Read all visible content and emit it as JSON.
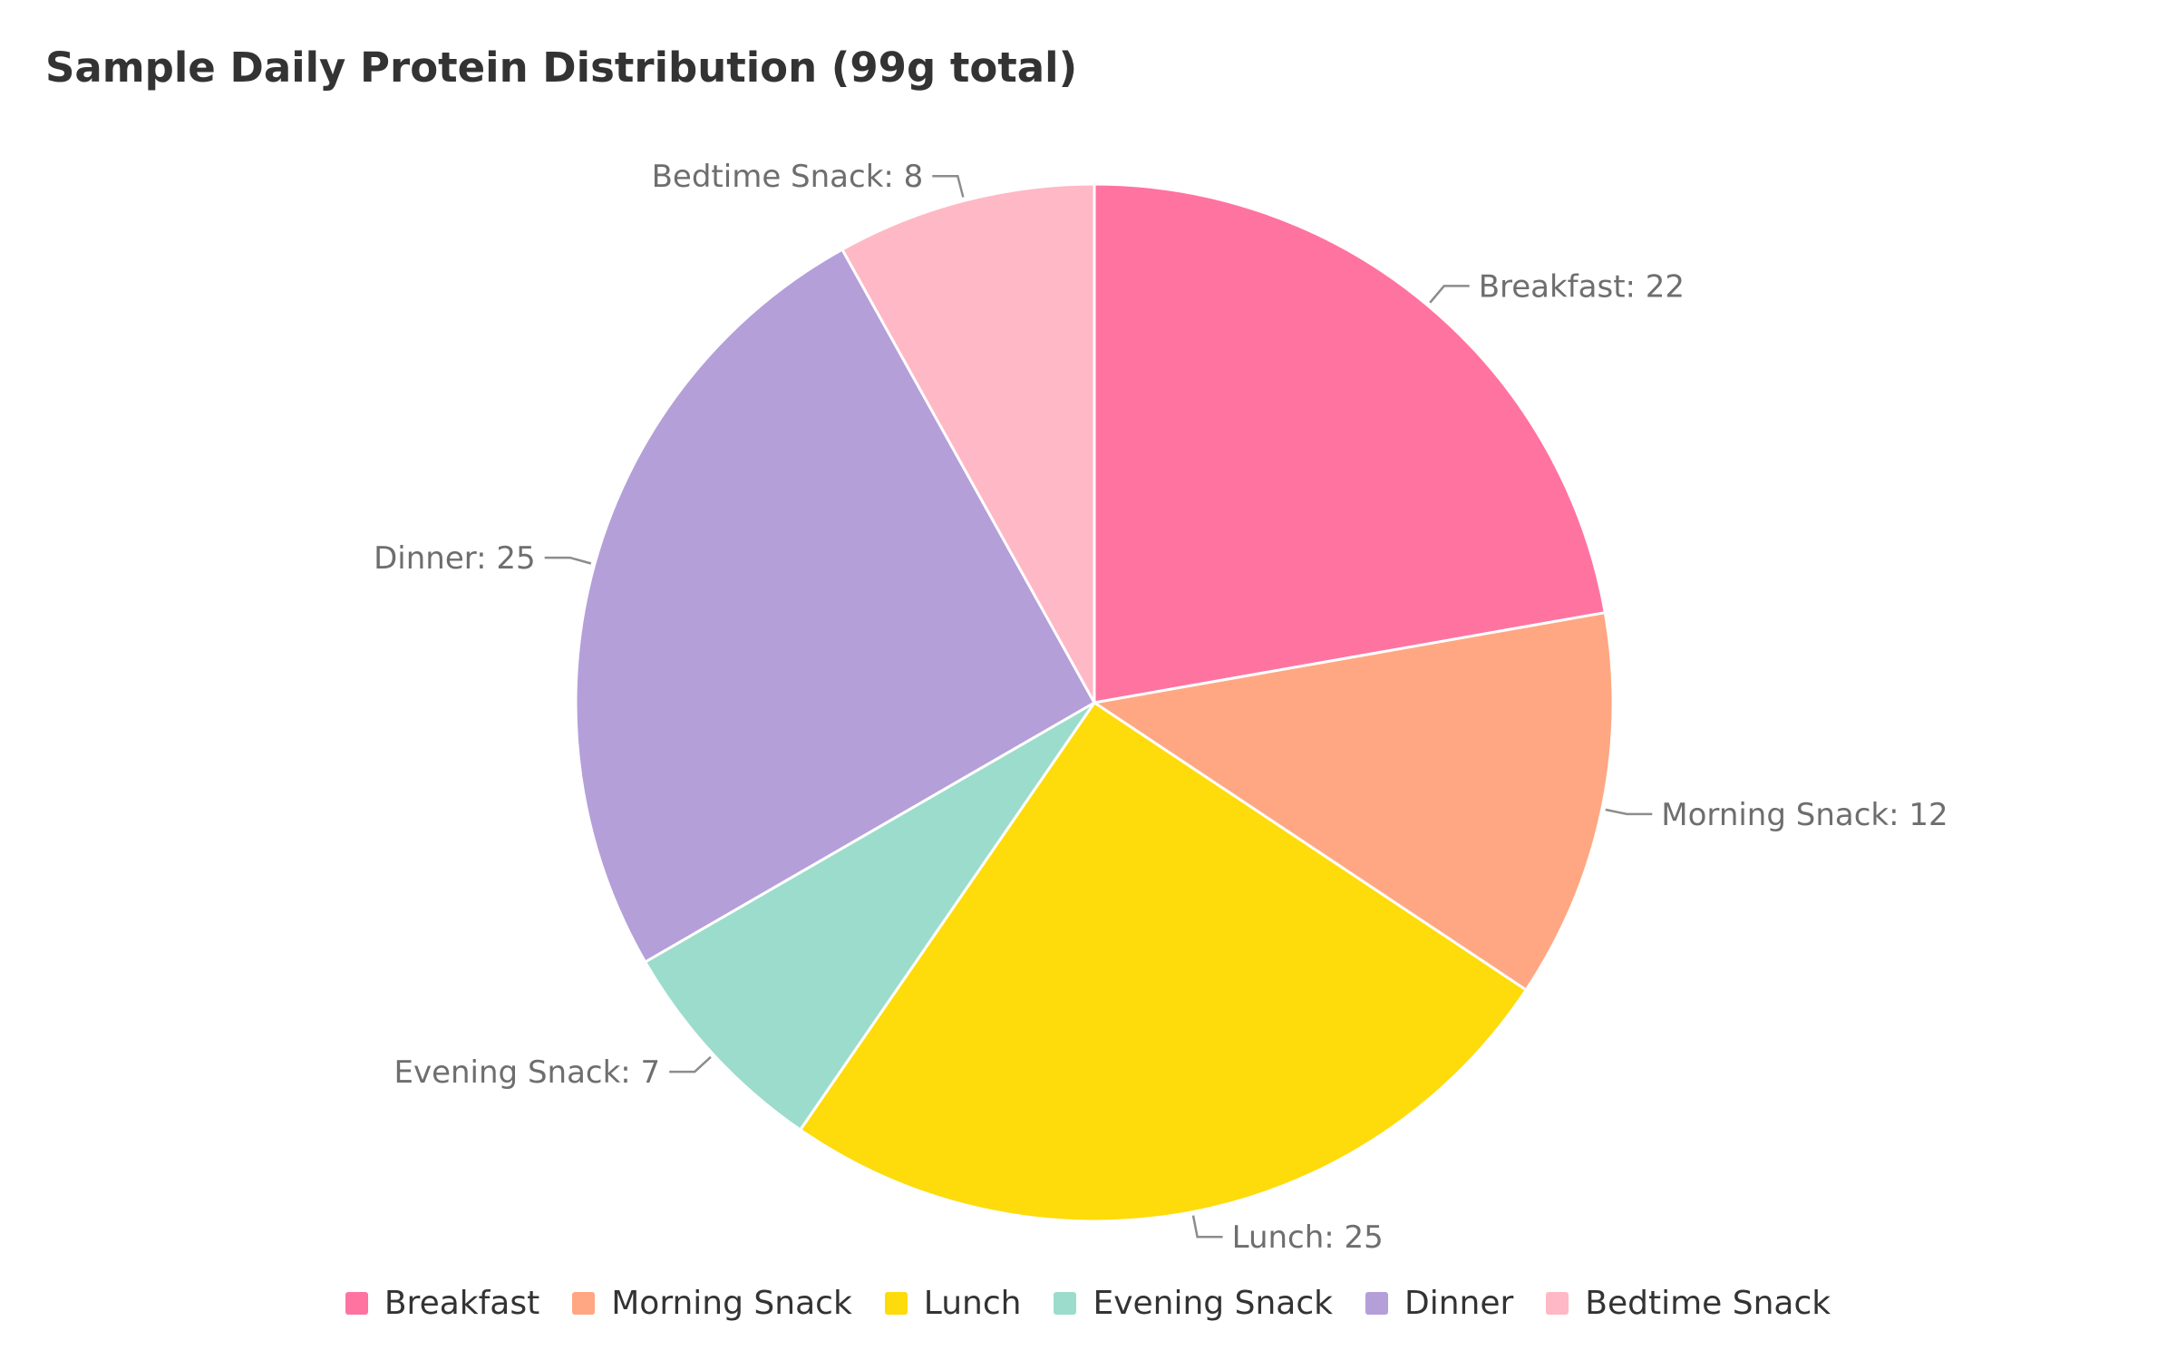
{
  "chart_data": {
    "type": "pie",
    "title": "Sample Daily Protein Distribution (99g total)",
    "categories": [
      "Breakfast",
      "Morning Snack",
      "Lunch",
      "Evening Snack",
      "Dinner",
      "Bedtime Snack"
    ],
    "values": [
      22,
      12,
      25,
      7,
      25,
      8
    ],
    "slice_labels": [
      "Breakfast: 22",
      "Morning Snack: 12",
      "Lunch: 25",
      "Evening Snack: 7",
      "Dinner: 25",
      "Bedtime Snack: 8"
    ],
    "colors": [
      "#ff73a1",
      "#ffa782",
      "#fedb0b",
      "#9cdccc",
      "#b49fd9",
      "#ffb8c5"
    ],
    "legend": {
      "placement": "bottom",
      "entries": [
        "Breakfast",
        "Morning Snack",
        "Lunch",
        "Evening Snack",
        "Dinner",
        "Bedtime Snack"
      ]
    }
  }
}
